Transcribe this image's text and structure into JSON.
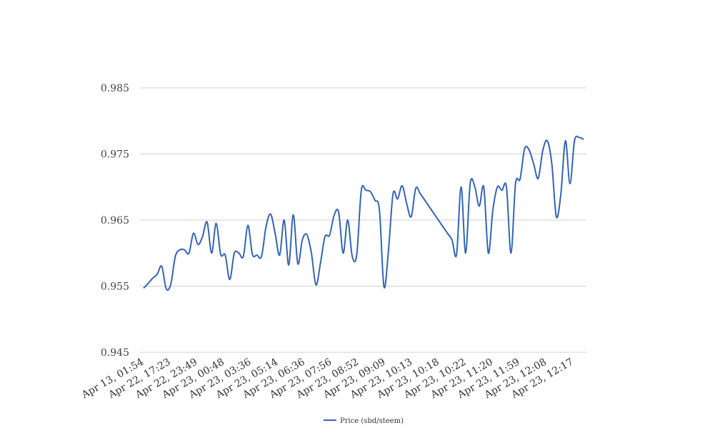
{
  "chart_data": {
    "type": "line",
    "title": "",
    "xlabel": "",
    "ylabel": "",
    "ylim": [
      0.945,
      0.985
    ],
    "yticks": [
      "0.945",
      "0.955",
      "0.965",
      "0.975",
      "0.985"
    ],
    "grid": true,
    "legend_position": "bottom",
    "x_tick_labels": [
      "Apr 13, 01:54",
      "Apr 22, 17:23",
      "Apr 22, 23:49",
      "Apr 23, 00:48",
      "Apr 23, 03:36",
      "Apr 23, 05:14",
      "Apr 23, 06:36",
      "Apr 23, 07:56",
      "Apr 23, 08:52",
      "Apr 23, 09:09",
      "Apr 23, 10:13",
      "Apr 23, 10:18",
      "Apr 23, 10:22",
      "Apr 23, 11:20",
      "Apr 23, 11:59",
      "Apr 23, 12:08",
      "Apr 23, 12:17"
    ],
    "series": [
      {
        "name": "Price (sbd/steem)",
        "color": "#3464b4",
        "values": [
          0.9547,
          0.9554,
          0.9562,
          0.9568,
          0.958,
          0.9546,
          0.9553,
          0.9595,
          0.9605,
          0.9605,
          0.96,
          0.963,
          0.9613,
          0.9625,
          0.9647,
          0.96,
          0.9645,
          0.9598,
          0.9597,
          0.956,
          0.96,
          0.96,
          0.9595,
          0.9642,
          0.9598,
          0.9597,
          0.9595,
          0.964,
          0.9659,
          0.963,
          0.9597,
          0.965,
          0.9582,
          0.9658,
          0.9584,
          0.962,
          0.9628,
          0.96,
          0.9552,
          0.9585,
          0.9625,
          0.9627,
          0.9657,
          0.9662,
          0.96,
          0.965,
          0.9595,
          0.9598,
          0.9695,
          0.9695,
          0.9693,
          0.968,
          0.9665,
          0.9549,
          0.9605,
          0.969,
          0.9682,
          0.9702,
          0.9675,
          0.9655,
          0.9698,
          0.969,
          0.968,
          0.967,
          0.966,
          0.965,
          0.964,
          0.963,
          0.962,
          0.9598,
          0.97,
          0.96,
          0.9705,
          0.9701,
          0.9671,
          0.97,
          0.96,
          0.9665,
          0.97,
          0.9695,
          0.97,
          0.96,
          0.9705,
          0.9712,
          0.9758,
          0.9756,
          0.9735,
          0.9713,
          0.9755,
          0.977,
          0.9735,
          0.9655,
          0.969,
          0.977,
          0.9705,
          0.977,
          0.9775,
          0.9772
        ]
      }
    ]
  }
}
